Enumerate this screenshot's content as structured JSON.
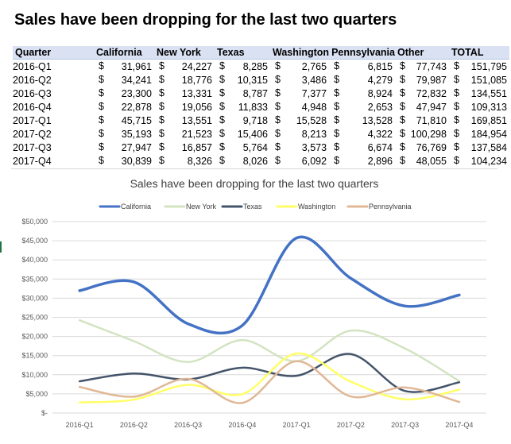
{
  "page": {
    "heading": "Sales have been dropping for the last two quarters"
  },
  "table": {
    "headers": [
      "Quarter",
      "California",
      "New York",
      "Texas",
      "Washington",
      "Pennsylvania",
      "Other",
      "TOTAL"
    ],
    "currency_symbol": "$",
    "rows": [
      {
        "quarter": "2016-Q1",
        "values": [
          "31,961",
          "24,227",
          "8,285",
          "2,765",
          "6,815",
          "77,743",
          "151,795"
        ]
      },
      {
        "quarter": "2016-Q2",
        "values": [
          "34,241",
          "18,776",
          "10,315",
          "3,486",
          "4,279",
          "79,987",
          "151,085"
        ]
      },
      {
        "quarter": "2016-Q3",
        "values": [
          "23,300",
          "13,331",
          "8,787",
          "7,377",
          "8,924",
          "72,832",
          "134,551"
        ]
      },
      {
        "quarter": "2016-Q4",
        "values": [
          "22,878",
          "19,056",
          "11,833",
          "4,948",
          "2,653",
          "47,947",
          "109,313"
        ]
      },
      {
        "quarter": "2017-Q1",
        "values": [
          "45,715",
          "13,551",
          "9,718",
          "15,528",
          "13,528",
          "71,810",
          "169,851"
        ]
      },
      {
        "quarter": "2017-Q2",
        "values": [
          "35,193",
          "21,523",
          "15,406",
          "8,213",
          "4,322",
          "100,298",
          "184,954"
        ]
      },
      {
        "quarter": "2017-Q3",
        "values": [
          "27,947",
          "16,857",
          "5,764",
          "3,573",
          "6,674",
          "76,769",
          "137,584"
        ]
      },
      {
        "quarter": "2017-Q4",
        "values": [
          "30,839",
          "8,326",
          "8,026",
          "6,092",
          "2,896",
          "48,055",
          "104,234"
        ]
      }
    ]
  },
  "chart_data": {
    "type": "line",
    "title": "Sales have been dropping for the last two quarters",
    "categories": [
      "2016-Q1",
      "2016-Q2",
      "2016-Q3",
      "2016-Q4",
      "2017-Q1",
      "2017-Q2",
      "2017-Q3",
      "2017-Q4"
    ],
    "ylim": [
      0,
      50000
    ],
    "yticks": [
      0,
      5000,
      10000,
      15000,
      20000,
      25000,
      30000,
      35000,
      40000,
      45000,
      50000
    ],
    "ytick_labels": [
      "$-",
      "$5,000",
      "$10,000",
      "$15,000",
      "$20,000",
      "$25,000",
      "$30,000",
      "$35,000",
      "$40,000",
      "$45,000",
      "$50,000"
    ],
    "legend_position": "top",
    "smooth": true,
    "grid": true,
    "series": [
      {
        "name": "California",
        "color": "#4472c4",
        "values": [
          31961,
          34241,
          23300,
          22878,
          45715,
          35193,
          27947,
          30839
        ]
      },
      {
        "name": "New York",
        "color": "#d3e3c1",
        "values": [
          24227,
          18776,
          13331,
          19056,
          13551,
          21523,
          16857,
          8326
        ]
      },
      {
        "name": "Texas",
        "color": "#44546a",
        "values": [
          8285,
          10315,
          8787,
          11833,
          9718,
          15406,
          5764,
          8026
        ]
      },
      {
        "name": "Washington",
        "color": "#ffff66",
        "values": [
          2765,
          3486,
          7377,
          4948,
          15528,
          8213,
          3573,
          6092
        ]
      },
      {
        "name": "Pennsylvania",
        "color": "#e0b896",
        "values": [
          6815,
          4279,
          8924,
          2653,
          13528,
          4322,
          6674,
          2896
        ]
      }
    ]
  }
}
